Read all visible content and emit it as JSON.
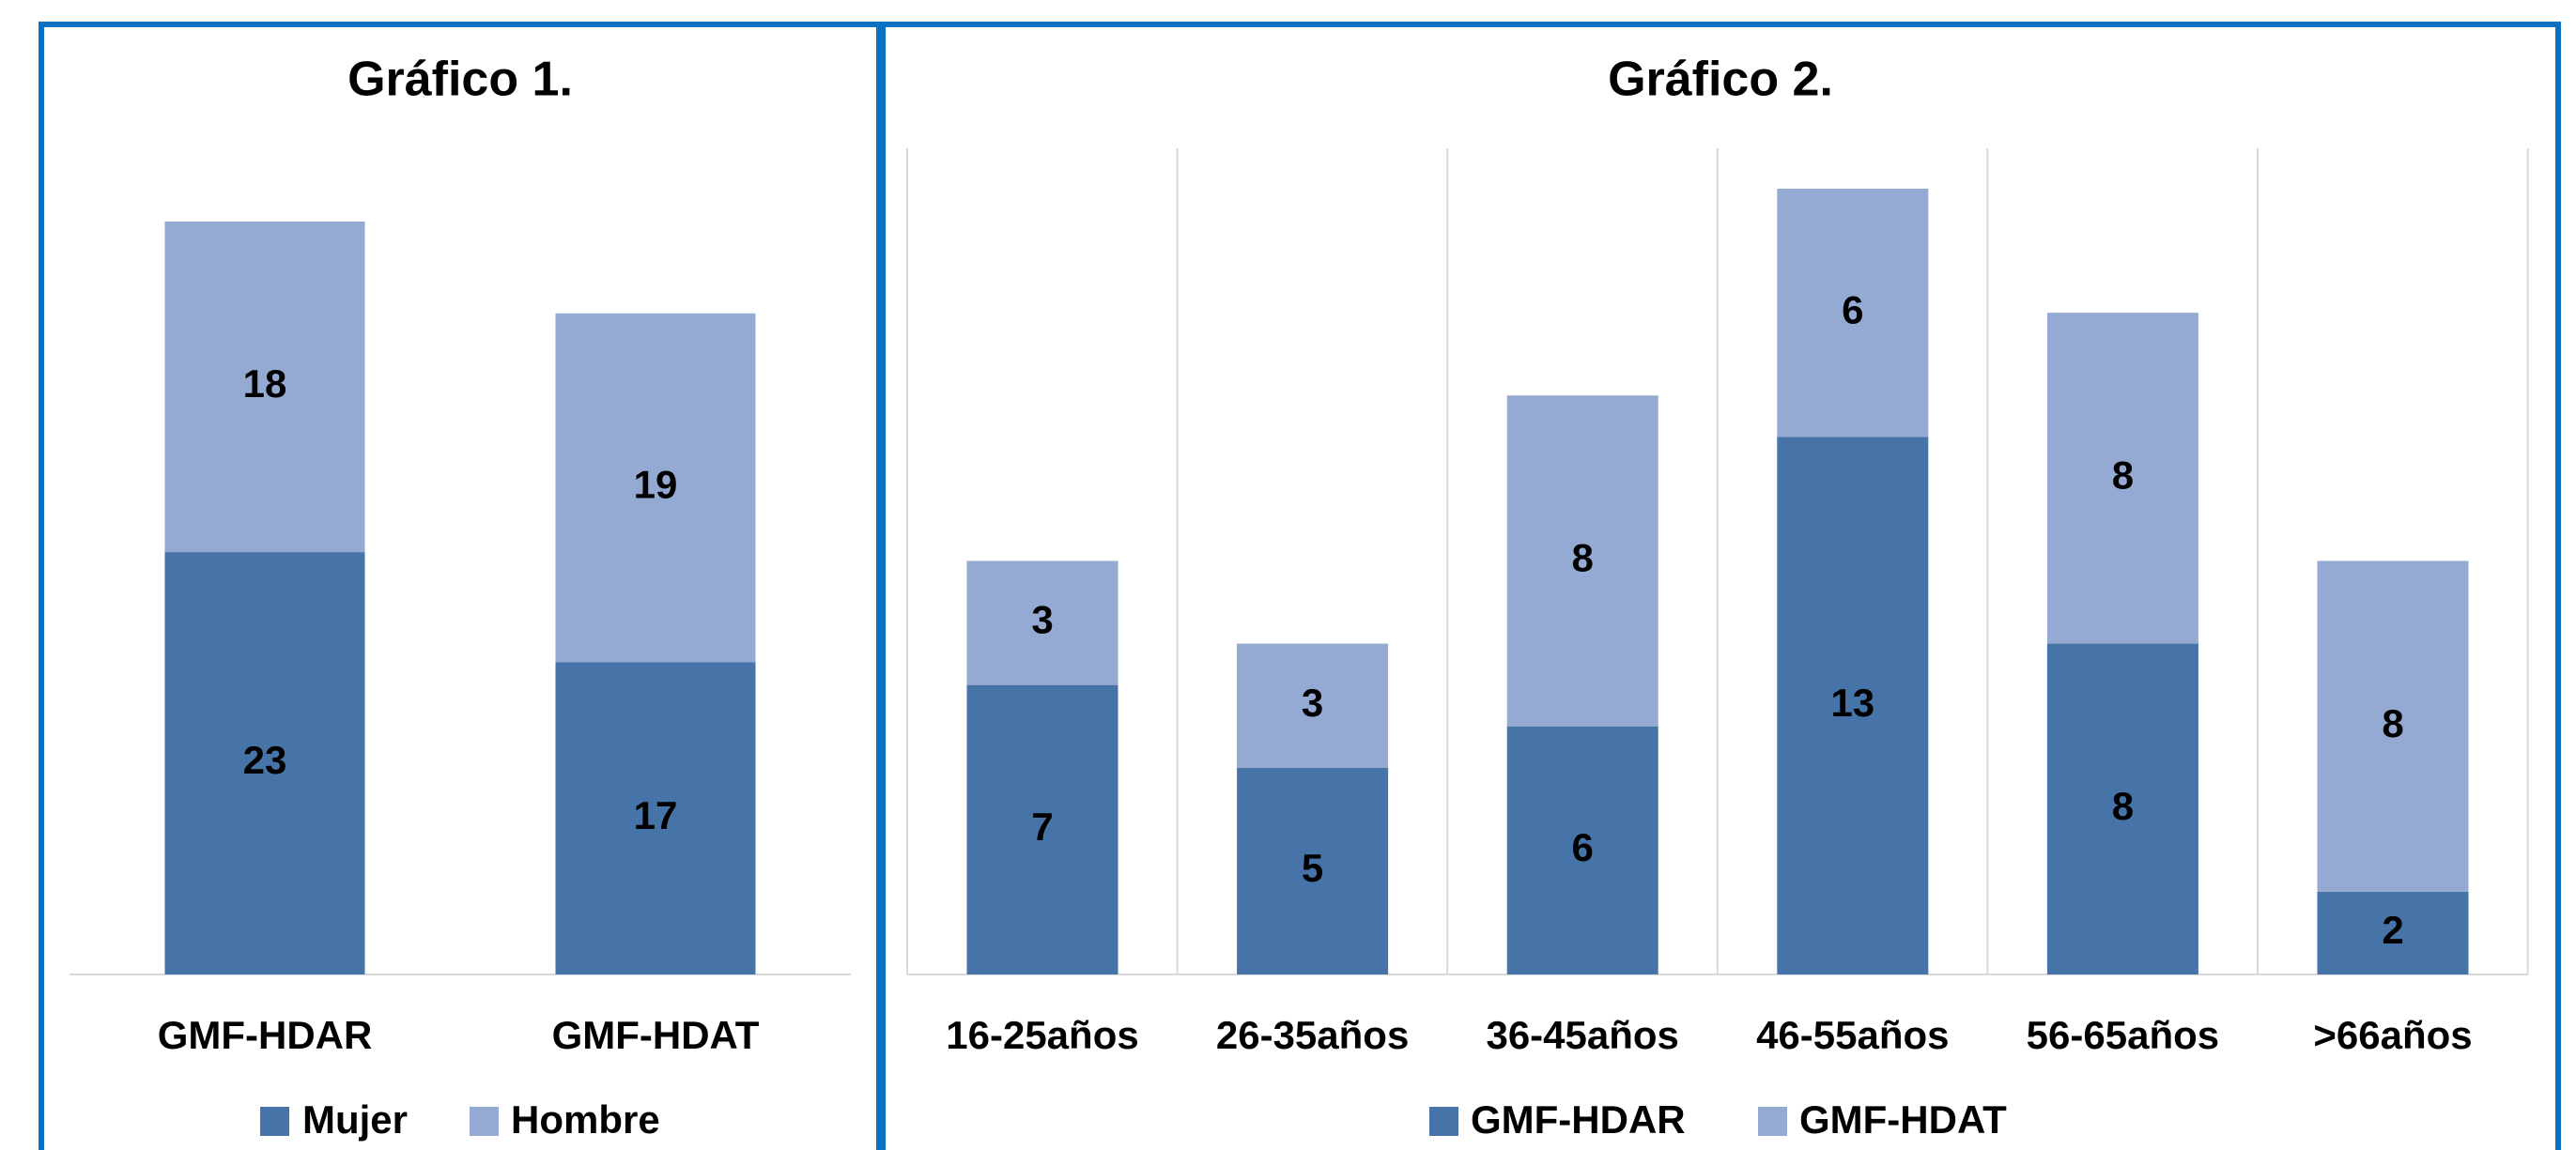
{
  "chart_data": [
    {
      "type": "bar",
      "stacked": true,
      "title": "Gráfico 1.",
      "categories": [
        "GMF-HDAR",
        "GMF-HDAT"
      ],
      "series": [
        {
          "name": "Mujer",
          "color": "#4673a8",
          "values": [
            23,
            17
          ]
        },
        {
          "name": "Hombre",
          "color": "#95aad2",
          "values": [
            18,
            19
          ]
        }
      ],
      "grid": false,
      "legend": "bottom"
    },
    {
      "type": "bar",
      "stacked": true,
      "title": "Gráfico 2.",
      "categories": [
        "16-25años",
        "26-35años",
        "36-45años",
        "46-55años",
        "56-65años",
        ">66años"
      ],
      "series": [
        {
          "name": "GMF-HDAR",
          "color": "#4673a8",
          "values": [
            7,
            5,
            6,
            13,
            8,
            2
          ]
        },
        {
          "name": "GMF-HDAT",
          "color": "#95aad2",
          "values": [
            3,
            3,
            8,
            6,
            8,
            8
          ]
        }
      ],
      "grid": true,
      "legend": "bottom"
    }
  ]
}
